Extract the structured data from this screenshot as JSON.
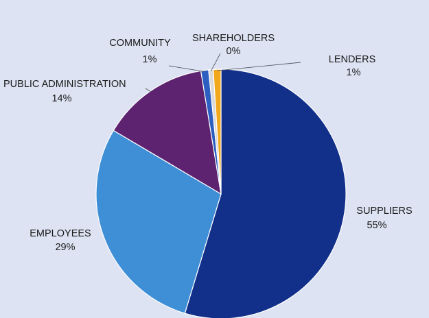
{
  "chart_data": {
    "type": "pie",
    "title": "",
    "legend": "none",
    "slices": [
      {
        "name": "SUPPLIERS",
        "value": 55,
        "label": "55%",
        "color": "#12308a"
      },
      {
        "name": "EMPLOYEES",
        "value": 29,
        "label": "29%",
        "color": "#3f8fd6"
      },
      {
        "name": "PUBLIC ADMINISTRATION",
        "value": 14,
        "label": "14%",
        "color": "#5e2370"
      },
      {
        "name": "COMMUNITY",
        "value": 1,
        "label": "1%",
        "color": "#2c5fc0"
      },
      {
        "name": "SHAREHOLDERS",
        "value": 0,
        "label": "0%",
        "color": "#d9d9d9"
      },
      {
        "name": "LENDERS",
        "value": 1,
        "label": "1%",
        "color": "#f2a81d"
      }
    ]
  }
}
